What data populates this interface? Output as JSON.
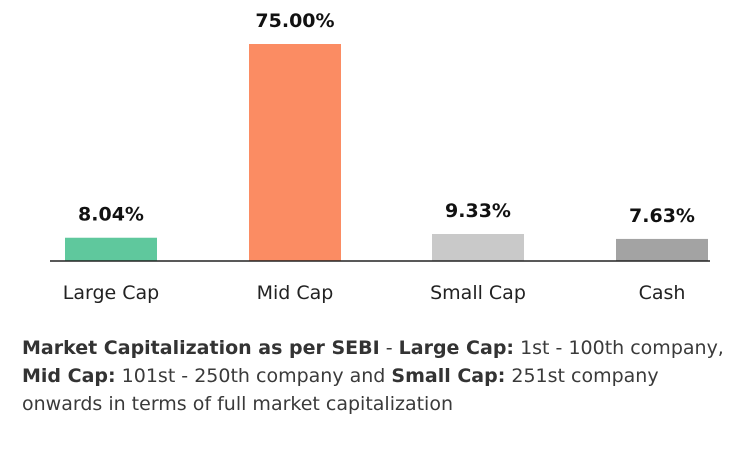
{
  "chart_data": {
    "type": "bar",
    "categories": [
      "Large Cap",
      "Mid Cap",
      "Small Cap",
      "Cash"
    ],
    "values": [
      8.04,
      75.0,
      9.33,
      7.63
    ],
    "value_labels": [
      "8.04%",
      "75.00%",
      "9.33%",
      "7.63%"
    ],
    "colors": [
      "#5fc89d",
      "#fb8c63",
      "#c9c9c9",
      "#a3a3a3"
    ],
    "ylim": [
      0,
      75
    ],
    "grid": false,
    "legend": "none",
    "title": "",
    "xlabel": "",
    "ylabel": ""
  },
  "footnote": {
    "lead_bold": "Market Capitalization as per SEBI",
    "sep1": " - ",
    "large_bold": "Large Cap:",
    "large_text": " 1st - 100th company, ",
    "mid_bold": "Mid Cap:",
    "mid_text": " 101st - 250th company and ",
    "small_bold": "Small Cap:",
    "small_text": " 251st company onwards in terms of full market capitalization"
  }
}
